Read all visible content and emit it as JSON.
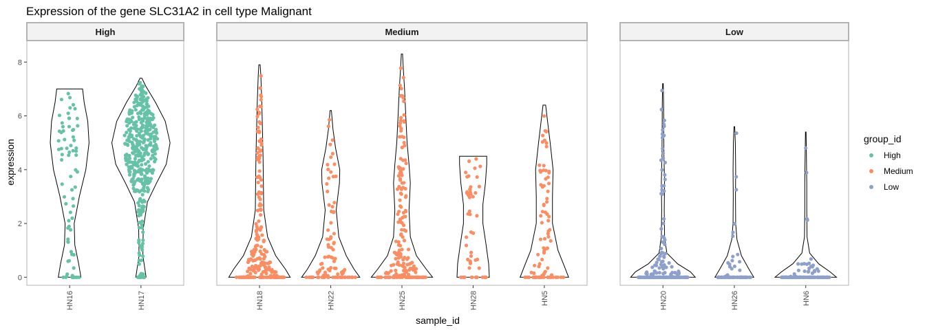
{
  "chart_data": {
    "type": "violin",
    "title": "Expression of the gene SLC31A2 in cell type Malignant",
    "xlabel": "sample_id",
    "ylabel": "expression",
    "ylim": [
      -0.3,
      8.8
    ],
    "yticks": [
      0,
      2,
      4,
      6,
      8
    ],
    "grid": false,
    "legend": {
      "title": "group_id",
      "position": "right",
      "entries": [
        {
          "label": "High",
          "color": "#66c2a5"
        },
        {
          "label": "Medium",
          "color": "#fc8d62"
        },
        {
          "label": "Low",
          "color": "#8da0cb"
        }
      ]
    },
    "facets": [
      {
        "label": "High",
        "group": "High",
        "color": "#66c2a5",
        "samples": [
          {
            "name": "HN16",
            "max": 7.0,
            "n_points": 75,
            "zero_frac": 0.15,
            "profile": [
              [
                0,
                0.35
              ],
              [
                0.5,
                0.28
              ],
              [
                1.2,
                0.16
              ],
              [
                2,
                0.14
              ],
              [
                3,
                0.3
              ],
              [
                4,
                0.5
              ],
              [
                5,
                0.6
              ],
              [
                5.8,
                0.56
              ],
              [
                6.5,
                0.45
              ],
              [
                7,
                0.4
              ]
            ]
          },
          {
            "name": "HN17",
            "max": 7.4,
            "n_points": 420,
            "zero_frac": 0.02,
            "profile": [
              [
                0,
                0.16
              ],
              [
                0.8,
                0.06
              ],
              [
                1.8,
                0.07
              ],
              [
                2.8,
                0.2
              ],
              [
                3.5,
                0.48
              ],
              [
                4.2,
                0.78
              ],
              [
                5,
                0.9
              ],
              [
                5.8,
                0.75
              ],
              [
                6.5,
                0.45
              ],
              [
                7.1,
                0.15
              ],
              [
                7.4,
                0.03
              ]
            ]
          }
        ]
      },
      {
        "label": "Medium",
        "group": "Medium",
        "color": "#fc8d62",
        "samples": [
          {
            "name": "HN18",
            "max": 7.9,
            "n_points": 230,
            "zero_frac": 0.32,
            "profile": [
              [
                0,
                0.95
              ],
              [
                0.3,
                0.8
              ],
              [
                0.8,
                0.5
              ],
              [
                1.5,
                0.25
              ],
              [
                2.5,
                0.13
              ],
              [
                3.5,
                0.12
              ],
              [
                4.5,
                0.11
              ],
              [
                5.5,
                0.09
              ],
              [
                6.5,
                0.07
              ],
              [
                7.5,
                0.04
              ],
              [
                7.9,
                0.02
              ]
            ]
          },
          {
            "name": "HN22",
            "max": 6.2,
            "n_points": 100,
            "zero_frac": 0.35,
            "profile": [
              [
                0,
                0.9
              ],
              [
                0.3,
                0.72
              ],
              [
                0.8,
                0.48
              ],
              [
                1.5,
                0.25
              ],
              [
                2.5,
                0.17
              ],
              [
                3.5,
                0.27
              ],
              [
                4,
                0.28
              ],
              [
                4.8,
                0.15
              ],
              [
                5.5,
                0.07
              ],
              [
                6.2,
                0.02
              ]
            ]
          },
          {
            "name": "HN25",
            "max": 8.3,
            "n_points": 200,
            "zero_frac": 0.3,
            "profile": [
              [
                0,
                0.95
              ],
              [
                0.3,
                0.75
              ],
              [
                0.8,
                0.45
              ],
              [
                1.5,
                0.26
              ],
              [
                2.5,
                0.22
              ],
              [
                3.5,
                0.26
              ],
              [
                4.2,
                0.22
              ],
              [
                5,
                0.16
              ],
              [
                6,
                0.12
              ],
              [
                7,
                0.08
              ],
              [
                7.8,
                0.04
              ],
              [
                8.3,
                0.02
              ]
            ]
          },
          {
            "name": "HN28",
            "max": 4.5,
            "n_points": 55,
            "zero_frac": 0.3,
            "profile": [
              [
                0,
                0.5
              ],
              [
                0.5,
                0.48
              ],
              [
                1.2,
                0.4
              ],
              [
                2,
                0.3
              ],
              [
                2.7,
                0.3
              ],
              [
                3.5,
                0.38
              ],
              [
                4.2,
                0.42
              ],
              [
                4.5,
                0.42
              ]
            ]
          },
          {
            "name": "HN5",
            "max": 6.4,
            "n_points": 90,
            "zero_frac": 0.35,
            "profile": [
              [
                0,
                0.75
              ],
              [
                0.4,
                0.62
              ],
              [
                1,
                0.42
              ],
              [
                2,
                0.25
              ],
              [
                3,
                0.25
              ],
              [
                4,
                0.27
              ],
              [
                5,
                0.18
              ],
              [
                5.8,
                0.1
              ],
              [
                6.4,
                0.04
              ]
            ]
          }
        ]
      },
      {
        "label": "Low",
        "group": "Low",
        "color": "#8da0cb",
        "samples": [
          {
            "name": "HN20",
            "max": 7.2,
            "n_points": 240,
            "zero_frac": 0.65,
            "profile": [
              [
                0,
                1.0
              ],
              [
                0.2,
                0.85
              ],
              [
                0.5,
                0.45
              ],
              [
                0.9,
                0.12
              ],
              [
                1.5,
                0.05
              ],
              [
                2.5,
                0.04
              ],
              [
                3.5,
                0.05
              ],
              [
                4.5,
                0.03
              ],
              [
                5.5,
                0.025
              ],
              [
                6.5,
                0.02
              ],
              [
                7.2,
                0.01
              ]
            ]
          },
          {
            "name": "HN26",
            "max": 5.6,
            "n_points": 90,
            "zero_frac": 0.8,
            "profile": [
              [
                0,
                0.6
              ],
              [
                0.3,
                0.45
              ],
              [
                0.8,
                0.22
              ],
              [
                1.4,
                0.08
              ],
              [
                2,
                0.04
              ],
              [
                3,
                0.035
              ],
              [
                4,
                0.04
              ],
              [
                5,
                0.03
              ],
              [
                5.6,
                0.01
              ]
            ]
          },
          {
            "name": "HN6",
            "max": 5.4,
            "n_points": 150,
            "zero_frac": 0.8,
            "profile": [
              [
                0,
                0.95
              ],
              [
                0.2,
                0.75
              ],
              [
                0.5,
                0.4
              ],
              [
                0.9,
                0.12
              ],
              [
                1.5,
                0.04
              ],
              [
                2.5,
                0.03
              ],
              [
                3.5,
                0.03
              ],
              [
                4.5,
                0.02
              ],
              [
                5.4,
                0.01
              ]
            ]
          }
        ]
      }
    ]
  }
}
